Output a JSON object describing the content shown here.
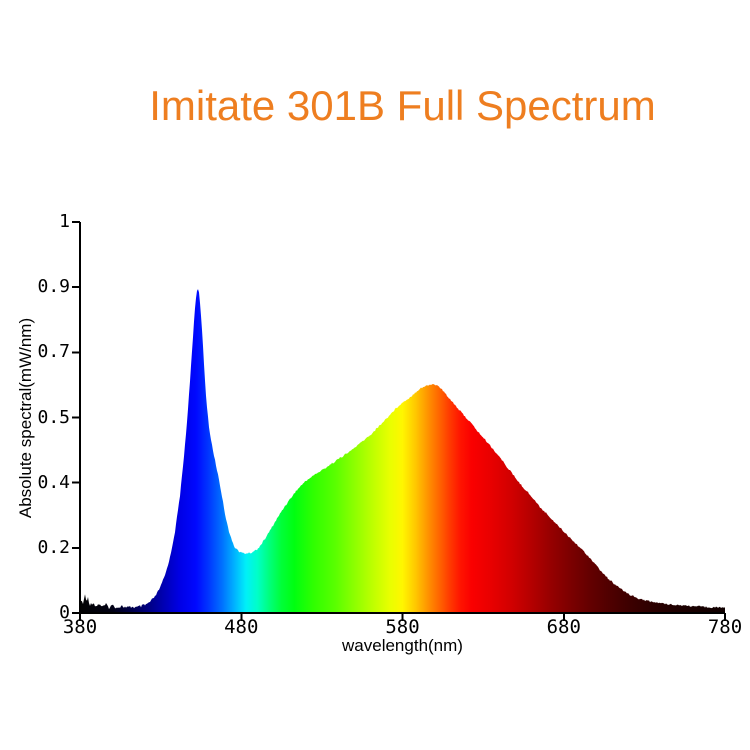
{
  "title": {
    "text": "Imitate 301B Full Spectrum",
    "color": "#EE7E20"
  },
  "axes": {
    "x": {
      "title": "wavelength(nm)",
      "ticks": [
        "380",
        "480",
        "580",
        "680",
        "780"
      ],
      "range": [
        380,
        780
      ]
    },
    "y": {
      "title": "Absolute spectral(mW/nm)",
      "tick_labels_bottom_to_top": [
        "0",
        "0.2",
        "0.4",
        "0.5",
        "0.7",
        "0.9",
        "1"
      ]
    }
  },
  "chart_data": {
    "type": "area",
    "title": "Imitate 301B Full Spectrum",
    "xlabel": "wavelength(nm)",
    "ylabel": "Absolute spectral(mW/nm)",
    "x_ticks": [
      380,
      480,
      580,
      680,
      780
    ],
    "x_range": [
      380,
      780
    ],
    "y_tick_labels_bottom_to_top": [
      "0",
      "0.2",
      "0.4",
      "0.5",
      "0.7",
      "0.9",
      "1"
    ],
    "y_tick_note": "tick labels are printed at equal spacing exactly as on the original chart",
    "y_unit": "fraction of full axis height (0 = baseline, 1 = top tick labeled 1)",
    "grid": false,
    "legend": false,
    "features": {
      "blue_peak": {
        "wavelength_nm": 453,
        "axis_value": 0.9
      },
      "valley": {
        "wavelength_nm": 482,
        "axis_value": 0.18
      },
      "broad_peak": {
        "wavelength_nm": 598,
        "axis_value": 0.6
      },
      "noise_spikes_region_nm": [
        380,
        425
      ]
    },
    "points": [
      [
        380,
        0.018
      ],
      [
        381,
        0.034
      ],
      [
        382,
        0.02
      ],
      [
        383,
        0.052
      ],
      [
        384,
        0.024
      ],
      [
        385,
        0.042
      ],
      [
        386,
        0.02
      ],
      [
        388,
        0.027
      ],
      [
        390,
        0.017
      ],
      [
        392,
        0.024
      ],
      [
        394,
        0.015
      ],
      [
        396,
        0.022
      ],
      [
        398,
        0.014
      ],
      [
        400,
        0.02
      ],
      [
        403,
        0.014
      ],
      [
        406,
        0.018
      ],
      [
        409,
        0.013
      ],
      [
        412,
        0.016
      ],
      [
        415,
        0.014
      ],
      [
        418,
        0.017
      ],
      [
        421,
        0.021
      ],
      [
        424,
        0.03
      ],
      [
        427,
        0.045
      ],
      [
        430,
        0.068
      ],
      [
        433,
        0.1
      ],
      [
        436,
        0.145
      ],
      [
        439,
        0.21
      ],
      [
        442,
        0.3
      ],
      [
        444,
        0.38
      ],
      [
        446,
        0.47
      ],
      [
        448,
        0.58
      ],
      [
        450,
        0.7
      ],
      [
        451,
        0.765
      ],
      [
        452,
        0.81
      ],
      [
        453,
        0.834
      ],
      [
        454,
        0.815
      ],
      [
        455,
        0.765
      ],
      [
        456,
        0.7
      ],
      [
        457,
        0.63
      ],
      [
        458,
        0.56
      ],
      [
        460,
        0.475
      ],
      [
        462,
        0.425
      ],
      [
        464,
        0.385
      ],
      [
        466,
        0.345
      ],
      [
        468,
        0.3
      ],
      [
        470,
        0.252
      ],
      [
        473,
        0.198
      ],
      [
        476,
        0.168
      ],
      [
        479,
        0.156
      ],
      [
        482,
        0.152
      ],
      [
        486,
        0.154
      ],
      [
        490,
        0.163
      ],
      [
        494,
        0.185
      ],
      [
        498,
        0.212
      ],
      [
        502,
        0.24
      ],
      [
        506,
        0.267
      ],
      [
        510,
        0.29
      ],
      [
        514,
        0.312
      ],
      [
        518,
        0.33
      ],
      [
        522,
        0.344
      ],
      [
        526,
        0.355
      ],
      [
        530,
        0.365
      ],
      [
        535,
        0.379
      ],
      [
        541,
        0.396
      ],
      [
        547,
        0.412
      ],
      [
        554,
        0.435
      ],
      [
        560,
        0.455
      ],
      [
        566,
        0.48
      ],
      [
        572,
        0.506
      ],
      [
        578,
        0.532
      ],
      [
        585,
        0.553
      ],
      [
        591,
        0.575
      ],
      [
        597,
        0.584
      ],
      [
        600,
        0.585
      ],
      [
        603,
        0.578
      ],
      [
        610,
        0.545
      ],
      [
        616,
        0.515
      ],
      [
        622,
        0.488
      ],
      [
        628,
        0.458
      ],
      [
        634,
        0.43
      ],
      [
        640,
        0.4
      ],
      [
        647,
        0.362
      ],
      [
        653,
        0.33
      ],
      [
        660,
        0.298
      ],
      [
        665,
        0.272
      ],
      [
        672,
        0.243
      ],
      [
        678,
        0.217
      ],
      [
        684,
        0.192
      ],
      [
        690,
        0.168
      ],
      [
        697,
        0.138
      ],
      [
        702,
        0.112
      ],
      [
        708,
        0.086
      ],
      [
        715,
        0.062
      ],
      [
        721,
        0.047
      ],
      [
        727,
        0.036
      ],
      [
        734,
        0.029
      ],
      [
        740,
        0.025
      ],
      [
        752,
        0.02
      ],
      [
        765,
        0.016
      ],
      [
        777,
        0.014
      ],
      [
        780,
        0.014
      ]
    ],
    "spectrum_gradient": [
      [
        380,
        "#020202"
      ],
      [
        400,
        "#010114"
      ],
      [
        412,
        "#00004A"
      ],
      [
        422,
        "#000080"
      ],
      [
        432,
        "#0000B4"
      ],
      [
        442,
        "#0000E6"
      ],
      [
        452,
        "#0008FF"
      ],
      [
        460,
        "#0038FF"
      ],
      [
        468,
        "#0070FF"
      ],
      [
        476,
        "#00B4FF"
      ],
      [
        483,
        "#00F0F8"
      ],
      [
        490,
        "#00FFC8"
      ],
      [
        497,
        "#00FF80"
      ],
      [
        505,
        "#00FF38"
      ],
      [
        513,
        "#00FF10"
      ],
      [
        525,
        "#30FF00"
      ],
      [
        538,
        "#58FF00"
      ],
      [
        550,
        "#8CFF00"
      ],
      [
        562,
        "#C0FF00"
      ],
      [
        572,
        "#E8FF00"
      ],
      [
        580,
        "#FFF600"
      ],
      [
        588,
        "#FFC800"
      ],
      [
        595,
        "#FF9800"
      ],
      [
        602,
        "#FF6A00"
      ],
      [
        609,
        "#FF3C00"
      ],
      [
        616,
        "#FF1400"
      ],
      [
        623,
        "#FA0000"
      ],
      [
        635,
        "#E80000"
      ],
      [
        648,
        "#D00000"
      ],
      [
        660,
        "#B40000"
      ],
      [
        672,
        "#960000"
      ],
      [
        684,
        "#7C0000"
      ],
      [
        696,
        "#640000"
      ],
      [
        708,
        "#500000"
      ],
      [
        720,
        "#3E0000"
      ],
      [
        735,
        "#2C0000"
      ],
      [
        750,
        "#1E0000"
      ],
      [
        765,
        "#160000"
      ],
      [
        780,
        "#100000"
      ]
    ],
    "axis_color": "#000000"
  }
}
